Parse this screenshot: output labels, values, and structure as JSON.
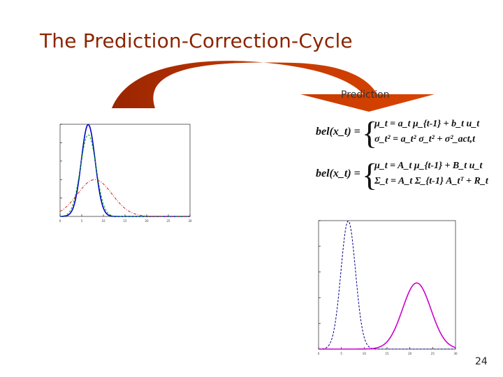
{
  "slide": {
    "title": "The Prediction-Correction-Cycle",
    "prediction_label": "Prediction",
    "page_number": "24"
  },
  "equations": {
    "scalar": {
      "lhs": "bel(x_t) =",
      "line1": "μ_t = a_t μ_{t-1} + b_t u_t",
      "line2": "σ_t² = a_t² σ_t² + σ²_act,t"
    },
    "matrix": {
      "lhs": "bel(x_t) =",
      "line1": "μ_t = A_t μ_{t-1} + B_t u_t",
      "line2": "Σ_t = A_t Σ_{t-1} A_tᵀ + R_t"
    }
  },
  "colors": {
    "title": "#8b2500",
    "arrow": "#b83000"
  },
  "chart_data": [
    {
      "type": "line",
      "xlim": [
        0,
        30
      ],
      "ylim": [
        0,
        0.25
      ],
      "x_ticks": [
        0,
        5,
        10,
        15,
        20,
        25,
        30
      ],
      "series": [
        {
          "color": "#0000cc",
          "style": "solid",
          "mean": 6.5,
          "sd": 1.6
        },
        {
          "color": "#00aa00",
          "style": "dashed",
          "mean": 6.5,
          "sd": 1.8
        },
        {
          "color": "#cc2222",
          "style": "dashdot",
          "mean": 8,
          "sd": 4
        }
      ]
    },
    {
      "type": "line",
      "xlim": [
        0,
        30
      ],
      "ylim": [
        0,
        0.25
      ],
      "x_ticks": [
        0,
        5,
        10,
        15,
        20,
        25,
        30
      ],
      "series": [
        {
          "color": "#000088",
          "style": "dashed",
          "mean": 6.5,
          "sd": 1.6
        },
        {
          "color": "#cc00cc",
          "style": "solid",
          "mean": 21.5,
          "sd": 3.1
        }
      ]
    }
  ]
}
